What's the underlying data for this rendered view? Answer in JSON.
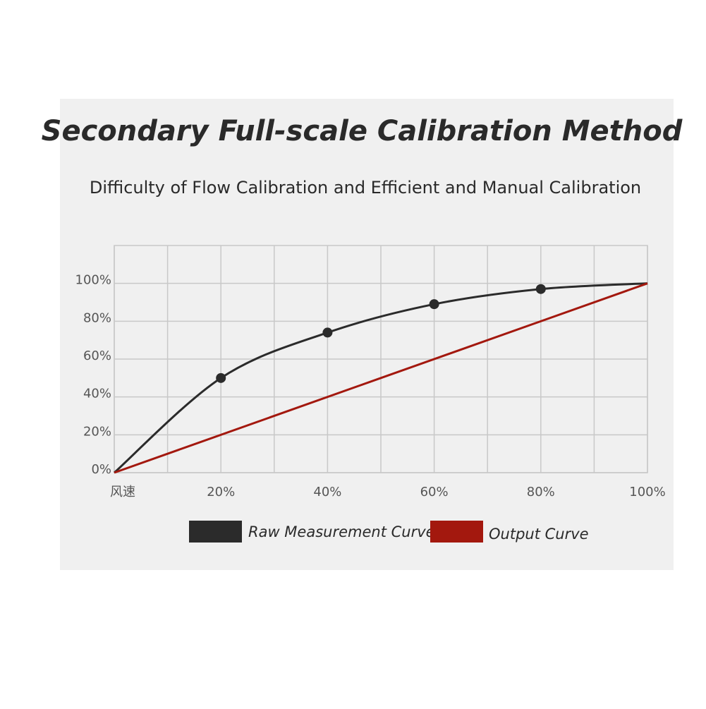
{
  "chart_data": {
    "type": "line",
    "title": "Secondary Full-scale Calibration Method",
    "subtitle": "Difficulty of Flow Calibration and Efficient and Manual Calibration",
    "xlim": [
      0,
      100
    ],
    "xticks": [
      {
        "value": 0,
        "label": "风速"
      },
      {
        "value": 20,
        "label": "20%"
      },
      {
        "value": 40,
        "label": "40%"
      },
      {
        "value": 60,
        "label": "60%"
      },
      {
        "value": 80,
        "label": "80%"
      },
      {
        "value": 100,
        "label": "100%"
      }
    ],
    "x_minor_ticks": [
      10,
      30,
      50,
      70,
      90
    ],
    "ylim": [
      0,
      120
    ],
    "yticks": [
      {
        "value": 0,
        "label": "0%"
      },
      {
        "value": 20,
        "label": "20%"
      },
      {
        "value": 40,
        "label": "40%"
      },
      {
        "value": 60,
        "label": "60%"
      },
      {
        "value": 80,
        "label": "80%"
      },
      {
        "value": 100,
        "label": "100%"
      }
    ],
    "grid": true,
    "series": [
      {
        "name": "Raw Measurement Curves",
        "color": "#2b2b2b",
        "x": [
          0,
          20,
          40,
          60,
          80,
          100
        ],
        "values": [
          0,
          50,
          74,
          89,
          97,
          100
        ]
      },
      {
        "name": "Output Curve",
        "color": "#a3180e",
        "x": [
          0,
          100
        ],
        "values": [
          0,
          100
        ]
      }
    ]
  }
}
